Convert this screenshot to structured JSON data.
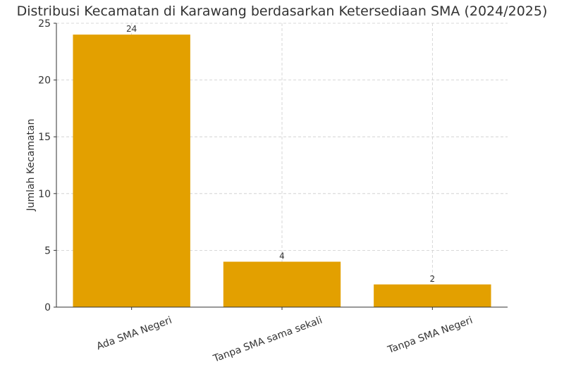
{
  "chart_data": {
    "type": "bar",
    "title": "Distribusi Kecamatan di Karawang berdasarkan Ketersediaan SMA (2024/2025)",
    "y_label": "Jumlah Kecamatan",
    "categories": [
      "Ada SMA Negeri",
      "Tanpa SMA sama sekali",
      "Tanpa SMA Negeri"
    ],
    "values": [
      24,
      4,
      2
    ],
    "color": "#e3a000",
    "ylim": [
      0,
      25
    ],
    "yticks": [
      0,
      5,
      10,
      15,
      20,
      25
    ],
    "grid": true
  }
}
